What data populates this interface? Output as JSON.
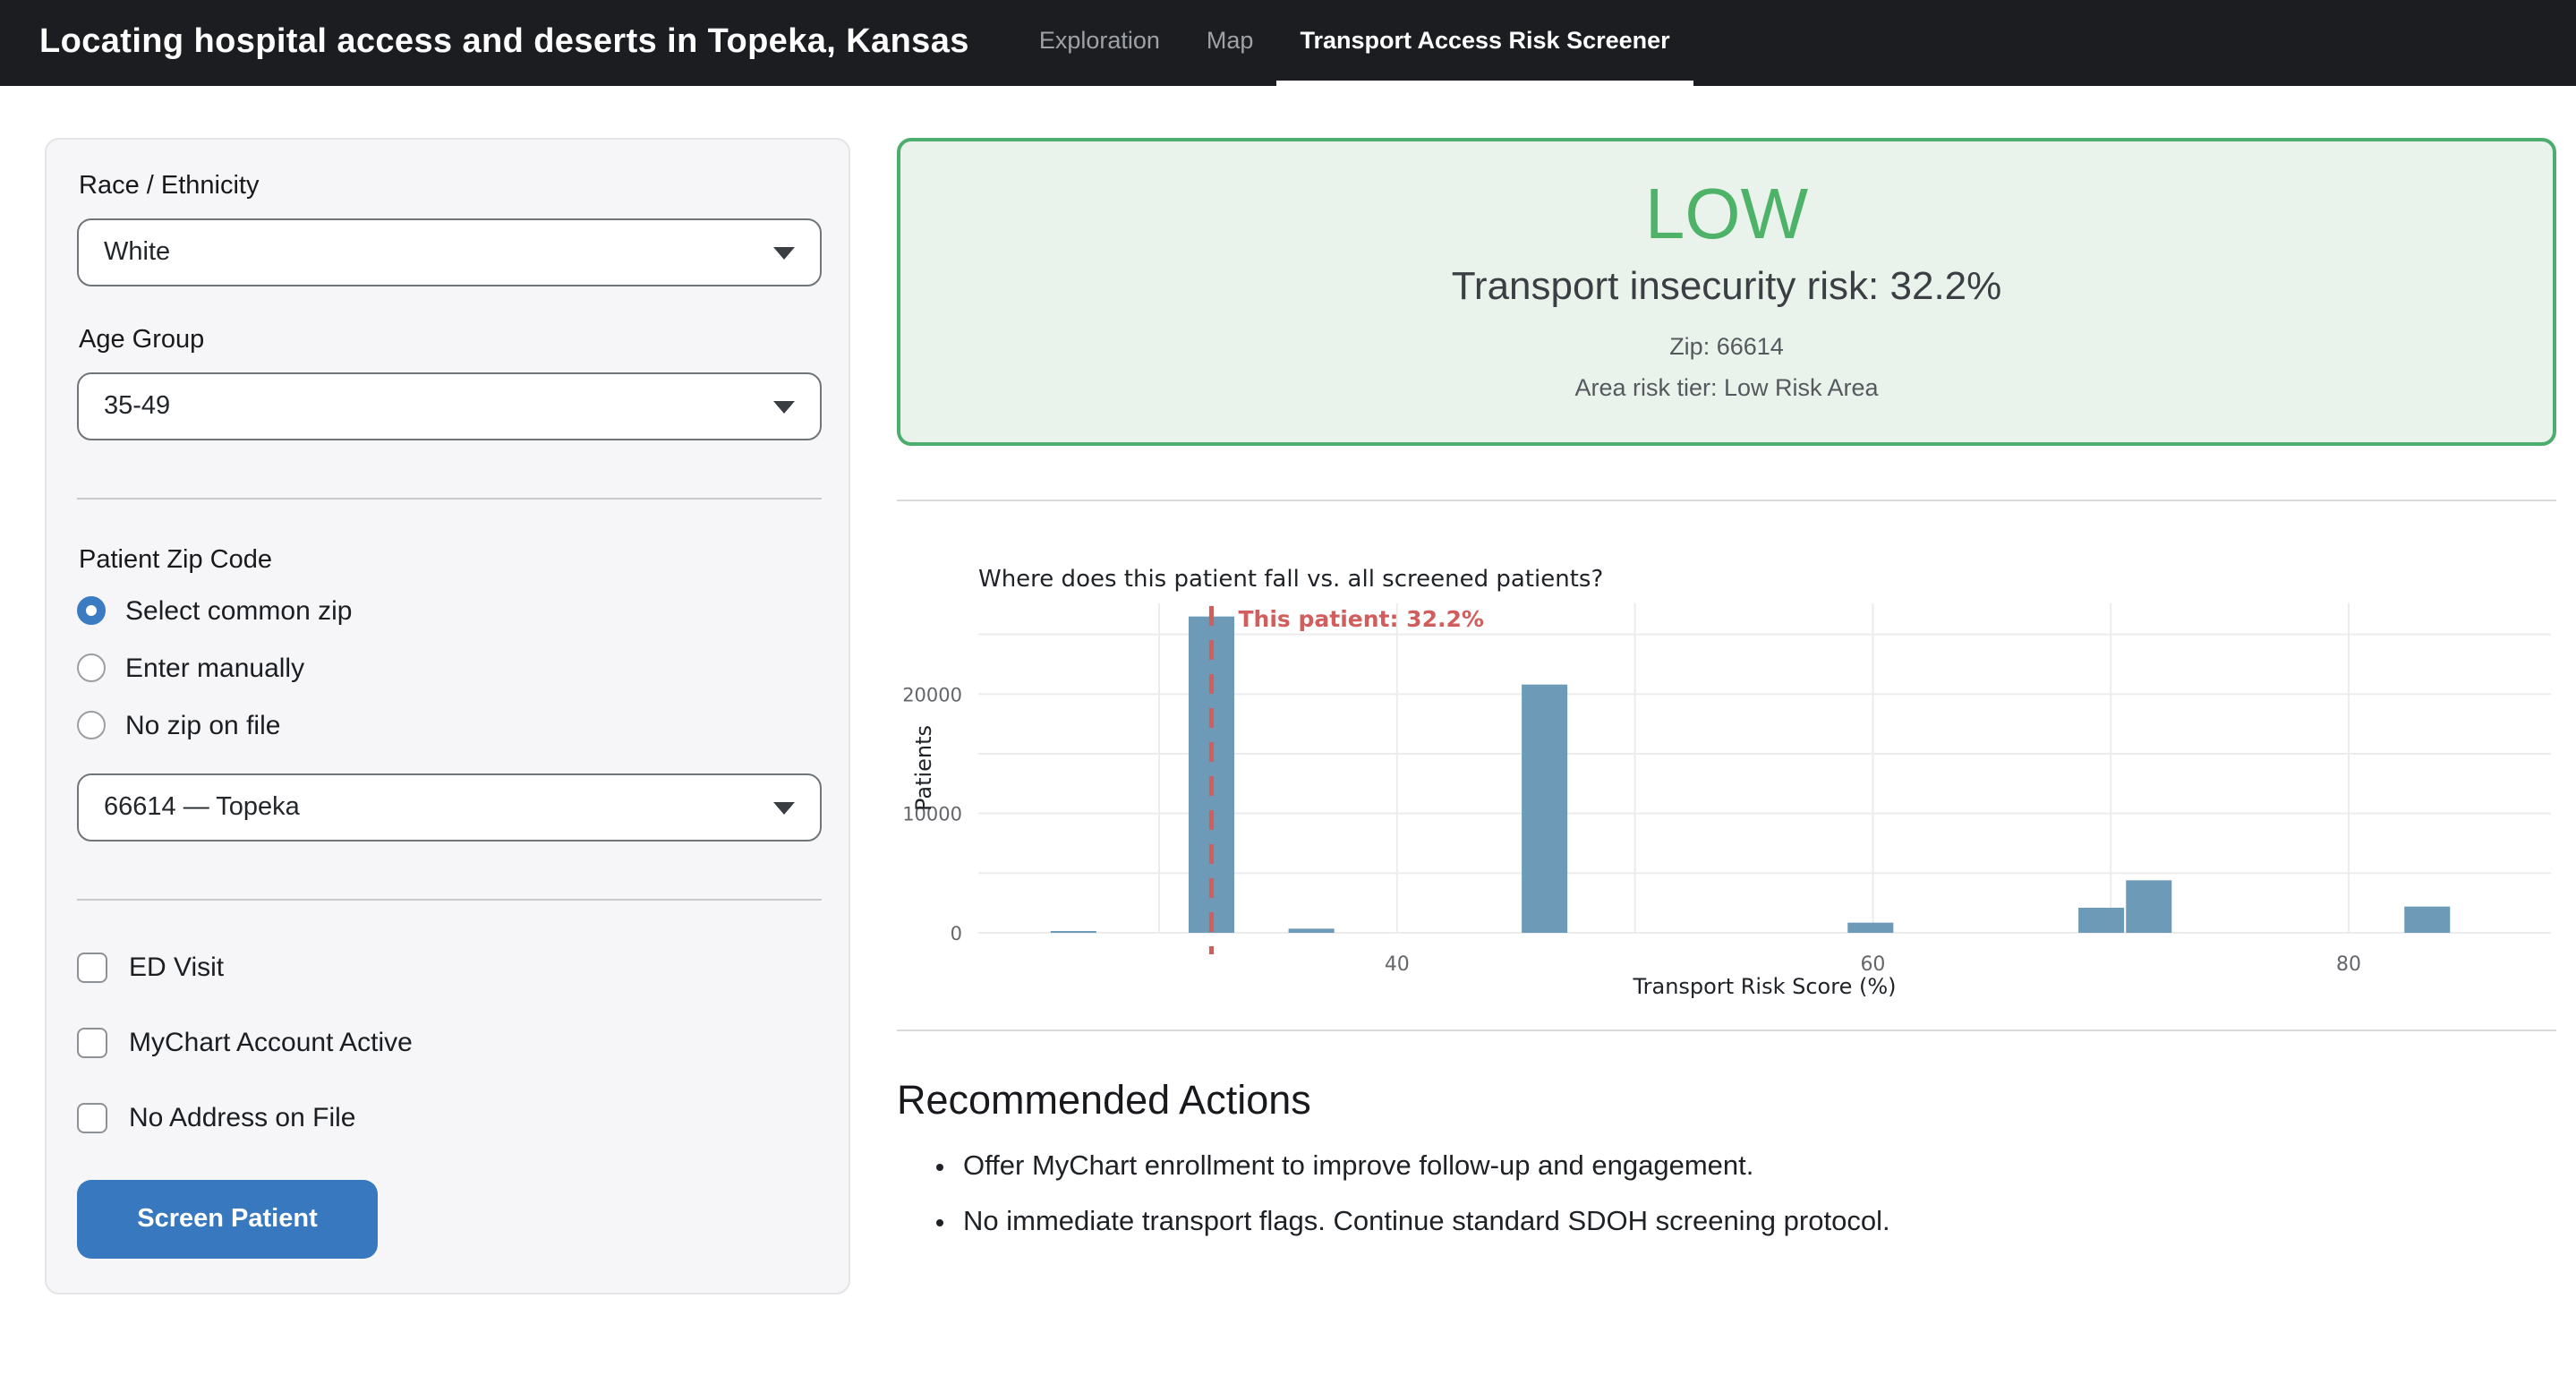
{
  "navbar": {
    "title": "Locating hospital access and deserts in Topeka, Kansas",
    "tabs": [
      {
        "label": "Exploration",
        "active": false
      },
      {
        "label": "Map",
        "active": false
      },
      {
        "label": "Transport Access Risk Screener",
        "active": true
      }
    ]
  },
  "form": {
    "race_label": "Race / Ethnicity",
    "race_value": "White",
    "age_label": "Age Group",
    "age_value": "35-49",
    "zip_section_label": "Patient Zip Code",
    "zip_modes": [
      {
        "label": "Select common zip",
        "selected": true
      },
      {
        "label": "Enter manually",
        "selected": false
      },
      {
        "label": "No zip on file",
        "selected": false
      }
    ],
    "zip_value": "66614 — Topeka",
    "checkboxes": [
      {
        "label": "ED Visit",
        "checked": false
      },
      {
        "label": "MyChart Account Active",
        "checked": false
      },
      {
        "label": "No Address on File",
        "checked": false
      }
    ],
    "submit_label": "Screen Patient"
  },
  "result": {
    "tier": "LOW",
    "risk_text": "Transport insecurity risk: 32.2%",
    "zip_text": "Zip: 66614",
    "area_text": "Area risk tier: Low Risk Area",
    "colors": {
      "background": "#e9f3ec",
      "border": "#4cae6e",
      "tier_text": "#4fb269"
    }
  },
  "chart_data": {
    "type": "bar",
    "title": "Where does this patient fall vs. all screened patients?",
    "xlabel": "Transport Risk Score (%)",
    "ylabel": "Patients",
    "bars": [
      {
        "x": 26.4,
        "count": 150
      },
      {
        "x": 32.2,
        "count": 26500
      },
      {
        "x": 36.4,
        "count": 350
      },
      {
        "x": 46.2,
        "count": 20800
      },
      {
        "x": 59.9,
        "count": 850
      },
      {
        "x": 69.6,
        "count": 2100
      },
      {
        "x": 71.6,
        "count": 4400
      },
      {
        "x": 83.3,
        "count": 2200
      }
    ],
    "bar_width": 1.92,
    "xlim": [
      22.4,
      88.5
    ],
    "ylim": [
      0,
      27600
    ],
    "x_ticks": [
      40,
      60,
      80
    ],
    "y_ticks": [
      0,
      10000,
      20000
    ],
    "x_gridlines": [
      30,
      40,
      50,
      60,
      70,
      80
    ],
    "y_grid_step": 5000,
    "grid": true,
    "legend": "none",
    "marker": {
      "value": 32.2,
      "label": "This patient: 32.2%",
      "color": "#d15d5d"
    },
    "bar_color": "#6d9bb7",
    "grid_color": "#ececec",
    "tick_color": "#63666a",
    "text_color": "#1f2226"
  },
  "actions": {
    "heading": "Recommended Actions",
    "items": [
      "Offer MyChart enrollment to improve follow-up and engagement.",
      "No immediate transport flags. Continue standard SDOH screening protocol."
    ]
  }
}
